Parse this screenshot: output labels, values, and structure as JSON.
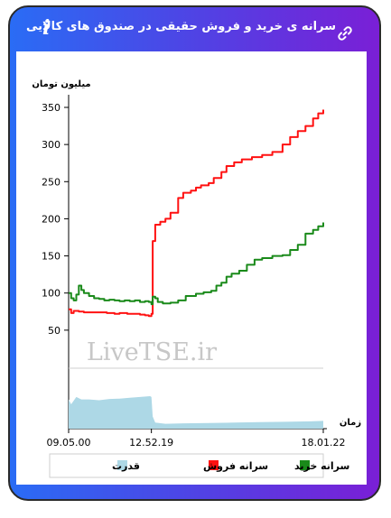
{
  "window": {
    "title": "سرانه ی خرید و فروش حقیقی در صندوق های کالایی",
    "info_label": "i"
  },
  "icons": {
    "info": "info-icon",
    "link": "link-icon"
  },
  "watermark": "LiveTSE.ir",
  "colors": {
    "header_gradient": [
      "#2a6cf5",
      "#7a1fd6"
    ],
    "buy": "#1a8a1a",
    "sell": "#ff1111",
    "power": "#add8e6"
  },
  "chart_data": {
    "type": "line",
    "title": "",
    "ylabel": "میلیون تومان",
    "xlabel": "زمان",
    "ylim": [
      0,
      350
    ],
    "yticks": [
      50,
      100,
      150,
      200,
      250,
      300,
      350
    ],
    "x_ticks": [
      "09.05.00",
      "12.52.19",
      "18.01.22"
    ],
    "x_tick_positions": [
      0,
      0.325,
      1
    ],
    "series": [
      {
        "name": "سرانه خرید",
        "color": "#1a8a1a",
        "points": [
          [
            0,
            100
          ],
          [
            0.01,
            93
          ],
          [
            0.02,
            90
          ],
          [
            0.03,
            98
          ],
          [
            0.04,
            110
          ],
          [
            0.05,
            104
          ],
          [
            0.06,
            100
          ],
          [
            0.08,
            96
          ],
          [
            0.1,
            93
          ],
          [
            0.12,
            92
          ],
          [
            0.14,
            90
          ],
          [
            0.16,
            91
          ],
          [
            0.18,
            90
          ],
          [
            0.2,
            89
          ],
          [
            0.22,
            90
          ],
          [
            0.24,
            89
          ],
          [
            0.26,
            90
          ],
          [
            0.28,
            88
          ],
          [
            0.3,
            89
          ],
          [
            0.315,
            88
          ],
          [
            0.325,
            85
          ],
          [
            0.33,
            95
          ],
          [
            0.34,
            93
          ],
          [
            0.35,
            88
          ],
          [
            0.37,
            86
          ],
          [
            0.4,
            87
          ],
          [
            0.43,
            90
          ],
          [
            0.46,
            96
          ],
          [
            0.5,
            99
          ],
          [
            0.53,
            101
          ],
          [
            0.56,
            103
          ],
          [
            0.58,
            110
          ],
          [
            0.6,
            114
          ],
          [
            0.62,
            122
          ],
          [
            0.64,
            126
          ],
          [
            0.67,
            130
          ],
          [
            0.7,
            138
          ],
          [
            0.73,
            145
          ],
          [
            0.76,
            147
          ],
          [
            0.8,
            150
          ],
          [
            0.84,
            151
          ],
          [
            0.87,
            158
          ],
          [
            0.9,
            165
          ],
          [
            0.93,
            180
          ],
          [
            0.96,
            185
          ],
          [
            0.98,
            190
          ],
          [
            1,
            195
          ]
        ]
      },
      {
        "name": "سرانه فروش",
        "color": "#ff1111",
        "points": [
          [
            0,
            78
          ],
          [
            0.01,
            73
          ],
          [
            0.02,
            76
          ],
          [
            0.04,
            75
          ],
          [
            0.06,
            74
          ],
          [
            0.09,
            74
          ],
          [
            0.12,
            74
          ],
          [
            0.15,
            73
          ],
          [
            0.18,
            72
          ],
          [
            0.2,
            73
          ],
          [
            0.23,
            72
          ],
          [
            0.26,
            72
          ],
          [
            0.28,
            71
          ],
          [
            0.3,
            70
          ],
          [
            0.315,
            69
          ],
          [
            0.325,
            72
          ],
          [
            0.33,
            170
          ],
          [
            0.34,
            192
          ],
          [
            0.36,
            196
          ],
          [
            0.38,
            200
          ],
          [
            0.4,
            208
          ],
          [
            0.43,
            228
          ],
          [
            0.45,
            235
          ],
          [
            0.48,
            238
          ],
          [
            0.5,
            242
          ],
          [
            0.52,
            245
          ],
          [
            0.55,
            248
          ],
          [
            0.57,
            255
          ],
          [
            0.6,
            263
          ],
          [
            0.62,
            271
          ],
          [
            0.65,
            276
          ],
          [
            0.68,
            280
          ],
          [
            0.72,
            283
          ],
          [
            0.76,
            286
          ],
          [
            0.8,
            290
          ],
          [
            0.84,
            300
          ],
          [
            0.87,
            310
          ],
          [
            0.9,
            318
          ],
          [
            0.93,
            325
          ],
          [
            0.96,
            335
          ],
          [
            0.98,
            342
          ],
          [
            1,
            347
          ]
        ]
      },
      {
        "name": "قدرت",
        "color": "#add8e6",
        "points": [
          [
            0,
            0.72
          ],
          [
            0.01,
            0.6
          ],
          [
            0.03,
            0.78
          ],
          [
            0.05,
            0.72
          ],
          [
            0.08,
            0.72
          ],
          [
            0.12,
            0.7
          ],
          [
            0.16,
            0.73
          ],
          [
            0.2,
            0.74
          ],
          [
            0.24,
            0.76
          ],
          [
            0.28,
            0.78
          ],
          [
            0.32,
            0.8
          ],
          [
            0.325,
            0.78
          ],
          [
            0.33,
            0.3
          ],
          [
            0.34,
            0.15
          ],
          [
            0.38,
            0.12
          ],
          [
            0.45,
            0.13
          ],
          [
            0.55,
            0.14
          ],
          [
            0.65,
            0.15
          ],
          [
            0.75,
            0.16
          ],
          [
            0.85,
            0.17
          ],
          [
            0.95,
            0.18
          ],
          [
            1,
            0.19
          ]
        ]
      }
    ],
    "legend": {
      "placement": "bottom",
      "items": [
        "سرانه خرید",
        "سرانه فروش",
        "قدرت"
      ]
    }
  }
}
